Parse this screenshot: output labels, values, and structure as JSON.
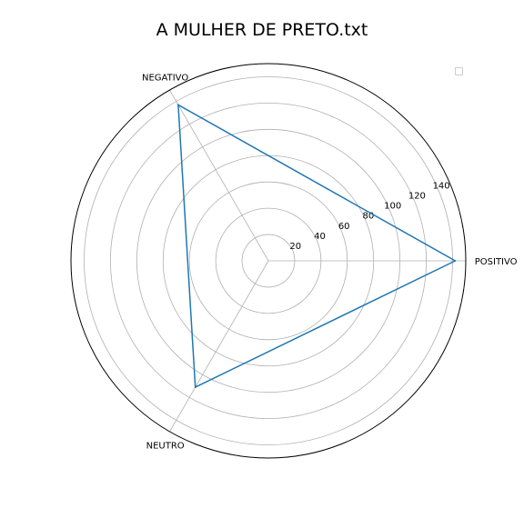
{
  "chart_data": {
    "type": "radar",
    "title": "A MULHER DE PRETO.txt",
    "categories": [
      "POSITIVO",
      "NEGATIVO",
      "NEUTRO"
    ],
    "series": [
      {
        "values": [
          142,
          137,
          111
        ],
        "color": "#1f77b4"
      }
    ],
    "rlim": [
      0,
      150
    ],
    "radial_ticks": [
      "20",
      "40",
      "60",
      "80",
      "100",
      "120",
      "140"
    ],
    "grid": true,
    "legend": {
      "placement": "top-right",
      "entries": []
    }
  }
}
